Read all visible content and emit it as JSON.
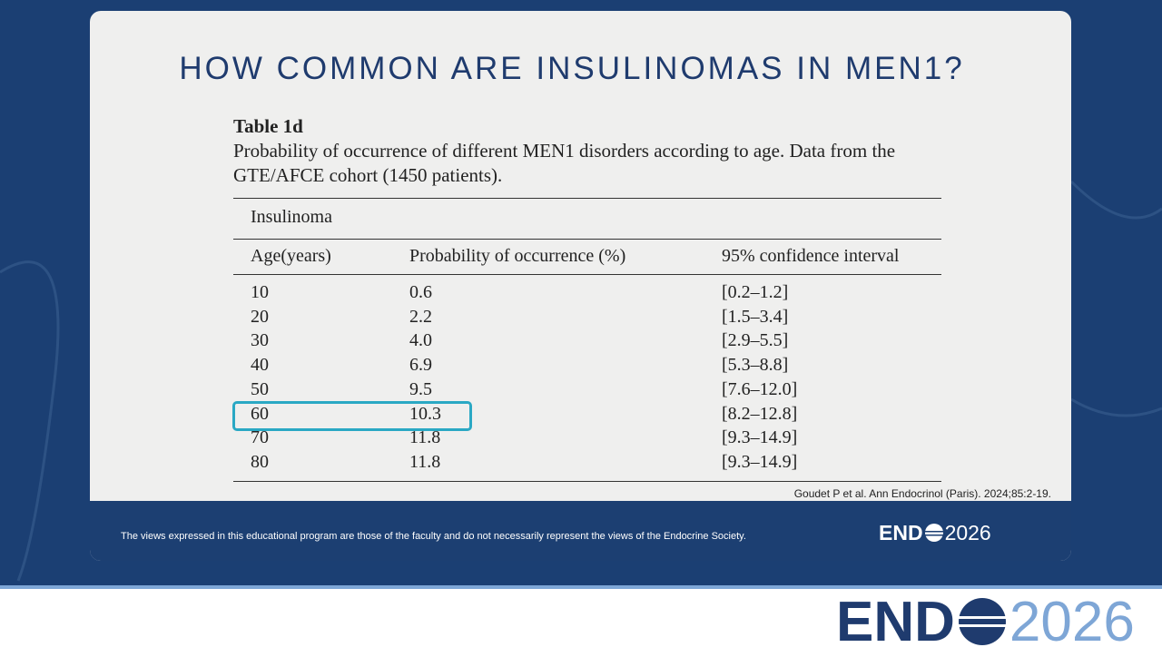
{
  "header": {
    "title": "HOW COMMON ARE INSULINOMAS IN MEN1?"
  },
  "table": {
    "caption": "Table 1d",
    "description": "Probability of occurrence of different MEN1 disorders according to age. Data from the GTE/AFCE cohort (1450 patients).",
    "group": "Insulinoma",
    "columns": [
      "Age(years)",
      "Probability of occurrence (%)",
      "95% confidence interval"
    ],
    "rows": [
      [
        "10",
        "0.6",
        "[0.2–1.2]"
      ],
      [
        "20",
        "2.2",
        "[1.5–3.4]"
      ],
      [
        "30",
        "4.0",
        "[2.9–5.5]"
      ],
      [
        "40",
        "6.9",
        "[5.3–8.8]"
      ],
      [
        "50",
        "9.5",
        "[7.6–12.0]"
      ],
      [
        "60",
        "10.3",
        "[8.2–12.8]"
      ],
      [
        "70",
        "11.8",
        "[9.3–14.9]"
      ],
      [
        "80",
        "11.8",
        "[9.3–14.9]"
      ]
    ]
  },
  "citation": "Goudet P et al. Ann Endocrinol (Paris). 2024;85:2-19.",
  "footer": {
    "disclaimer": "The views expressed in this educational program are those of the faculty and do not necessarily represent the views of the Endocrine Society.",
    "logo": {
      "left": "END",
      "right": "2026"
    }
  },
  "brand": {
    "left": "END",
    "right": "2026"
  }
}
